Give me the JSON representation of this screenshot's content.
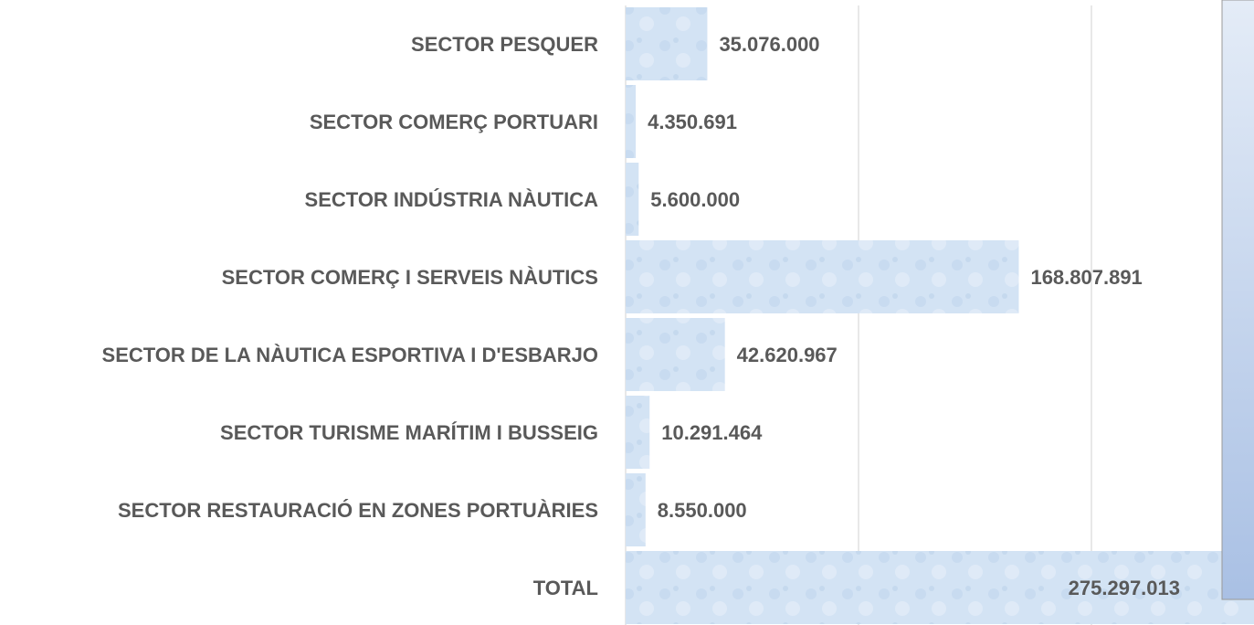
{
  "chart_data": {
    "type": "barh",
    "categories": [
      "SECTOR PESQUER",
      "SECTOR COMERÇ PORTUARI",
      "SECTOR INDÚSTRIA NÀUTICA",
      "SECTOR COMERÇ I SERVEIS NÀUTICS",
      "SECTOR DE LA NÀUTICA ESPORTIVA I D'ESBARJO",
      "SECTOR TURISME MARÍTIM I BUSSEIG",
      "SECTOR RESTAURACIÓ EN ZONES PORTUÀRIES",
      "TOTAL"
    ],
    "values": [
      35076000,
      4350691,
      5600000,
      168807891,
      42620967,
      10291464,
      8550000,
      275297013
    ],
    "value_labels": [
      "35.076.000",
      "4.350.691",
      "5.600.000",
      "168.807.891",
      "42.620.967",
      "10.291.464",
      "8.550.000",
      "275.297.013"
    ],
    "color": "#cfe0f3",
    "xlim": [
      0,
      300000000
    ],
    "xticks": [
      0,
      100000000,
      200000000
    ],
    "grid": true
  }
}
